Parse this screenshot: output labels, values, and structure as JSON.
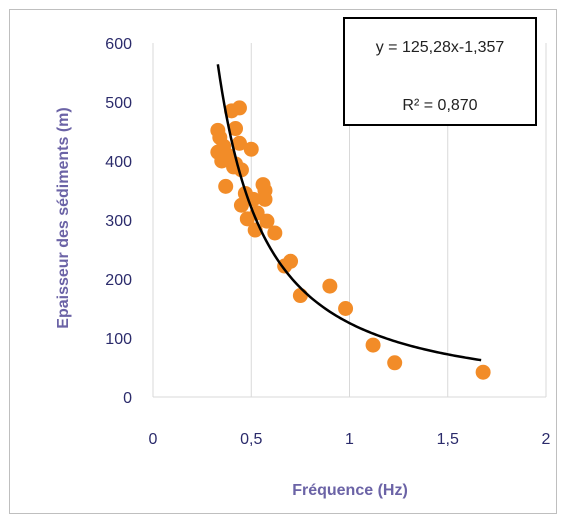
{
  "chart_data": {
    "type": "scatter",
    "xlabel": "Fréquence (Hz)",
    "ylabel": "Epaisseur des sédiments (m)",
    "xlim": [
      0,
      2
    ],
    "ylim": [
      0,
      600
    ],
    "x_ticks": [
      "0",
      "0,5",
      "1",
      "1,5",
      "2"
    ],
    "y_ticks": [
      "0",
      "100",
      "200",
      "300",
      "400",
      "500",
      "600"
    ],
    "grid": "vertical",
    "marker_color": "#f28c28",
    "trend_color": "#000000",
    "points": [
      {
        "x": 0.33,
        "y": 452
      },
      {
        "x": 0.34,
        "y": 440
      },
      {
        "x": 0.33,
        "y": 415
      },
      {
        "x": 0.35,
        "y": 400
      },
      {
        "x": 0.36,
        "y": 425
      },
      {
        "x": 0.37,
        "y": 357
      },
      {
        "x": 0.38,
        "y": 410
      },
      {
        "x": 0.4,
        "y": 485
      },
      {
        "x": 0.41,
        "y": 390
      },
      {
        "x": 0.42,
        "y": 455
      },
      {
        "x": 0.42,
        "y": 395
      },
      {
        "x": 0.44,
        "y": 490
      },
      {
        "x": 0.44,
        "y": 430
      },
      {
        "x": 0.45,
        "y": 385
      },
      {
        "x": 0.45,
        "y": 325
      },
      {
        "x": 0.47,
        "y": 345
      },
      {
        "x": 0.48,
        "y": 302
      },
      {
        "x": 0.5,
        "y": 420
      },
      {
        "x": 0.51,
        "y": 335
      },
      {
        "x": 0.52,
        "y": 283
      },
      {
        "x": 0.53,
        "y": 312
      },
      {
        "x": 0.56,
        "y": 360
      },
      {
        "x": 0.57,
        "y": 350
      },
      {
        "x": 0.57,
        "y": 335
      },
      {
        "x": 0.58,
        "y": 298
      },
      {
        "x": 0.62,
        "y": 278
      },
      {
        "x": 0.67,
        "y": 222
      },
      {
        "x": 0.7,
        "y": 230
      },
      {
        "x": 0.75,
        "y": 172
      },
      {
        "x": 0.9,
        "y": 188
      },
      {
        "x": 0.98,
        "y": 150
      },
      {
        "x": 1.12,
        "y": 88
      },
      {
        "x": 1.23,
        "y": 58
      },
      {
        "x": 1.68,
        "y": 42
      }
    ],
    "trendline": {
      "type": "power",
      "coefficient": 125.28,
      "exponent": -1.357,
      "x_range": [
        0.33,
        1.67
      ],
      "equation": "y = 125,28x-1,357",
      "r_squared": "R² = 0,870"
    }
  }
}
